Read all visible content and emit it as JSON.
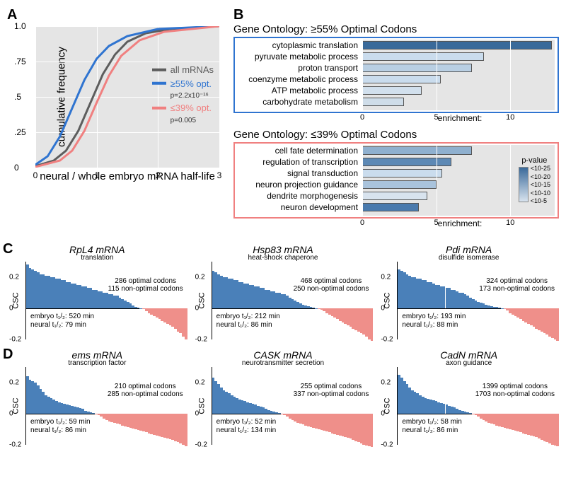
{
  "panelA": {
    "label": "A",
    "ylabel": "cumulative frequency",
    "xlabel": "neural / whole embryo mRNA half-life",
    "xlim": [
      0,
      3
    ],
    "ylim": [
      0,
      1
    ],
    "xticks": [
      0,
      1,
      2,
      3
    ],
    "yticks": [
      0,
      0.25,
      0.5,
      0.75,
      1.0
    ],
    "ytick_labels": [
      "0",
      ".25",
      ".5",
      ".75",
      "1.0"
    ],
    "bg": "#e5e5e5",
    "grid_color": "#ffffff",
    "line_width": 3,
    "series": [
      {
        "name": "all mRNAs",
        "color": "#5d5d5d",
        "p": null,
        "pts": [
          [
            0,
            0.01
          ],
          [
            0.3,
            0.05
          ],
          [
            0.5,
            0.12
          ],
          [
            0.7,
            0.26
          ],
          [
            0.9,
            0.46
          ],
          [
            1.1,
            0.66
          ],
          [
            1.3,
            0.8
          ],
          [
            1.5,
            0.89
          ],
          [
            1.8,
            0.95
          ],
          [
            2.2,
            0.98
          ],
          [
            3,
            1
          ]
        ]
      },
      {
        "name": "≥55% opt.",
        "color": "#2f74d0",
        "p": "p=2.2x10⁻¹⁶",
        "pts": [
          [
            0,
            0.02
          ],
          [
            0.2,
            0.08
          ],
          [
            0.4,
            0.22
          ],
          [
            0.6,
            0.42
          ],
          [
            0.8,
            0.62
          ],
          [
            1.0,
            0.77
          ],
          [
            1.2,
            0.86
          ],
          [
            1.5,
            0.93
          ],
          [
            2.0,
            0.98
          ],
          [
            3,
            1
          ]
        ]
      },
      {
        "name": "≤39% opt.",
        "color": "#f08080",
        "p": "p=0.005",
        "pts": [
          [
            0,
            0.005
          ],
          [
            0.4,
            0.05
          ],
          [
            0.6,
            0.12
          ],
          [
            0.8,
            0.26
          ],
          [
            1.0,
            0.46
          ],
          [
            1.2,
            0.65
          ],
          [
            1.4,
            0.79
          ],
          [
            1.7,
            0.9
          ],
          [
            2.1,
            0.96
          ],
          [
            3,
            1
          ]
        ]
      }
    ]
  },
  "panelB": {
    "label": "B",
    "title_hi": "Gene Ontology: ≥55% Optimal Codons",
    "title_lo": "Gene Ontology: ≤39% Optimal Codons",
    "border_hi": "#2f74d0",
    "border_lo": "#f08080",
    "xlabel": "enrichment:",
    "xmax": 13,
    "xticks": [
      0,
      5,
      10
    ],
    "pval_label": "p-value",
    "pval_scale_top": "<10-25",
    "pval_scale_bot": "<10-5",
    "pval_mids": [
      "<10-20",
      "<10-15",
      "<10-10"
    ],
    "grad_top": "#3a6a9a",
    "grad_bot": "#d8e3ee",
    "hi": [
      {
        "term": "cytoplasmic translation",
        "val": 12.8,
        "col": "#3a6a9a"
      },
      {
        "term": "pyruvate metabolic process",
        "val": 8.2,
        "col": "#cadced"
      },
      {
        "term": "proton transport",
        "val": 7.4,
        "col": "#b9cfe3"
      },
      {
        "term": "coenzyme metabolic process",
        "val": 5.3,
        "col": "#cadced"
      },
      {
        "term": "ATP metabolic process",
        "val": 4.0,
        "col": "#d2e0ed"
      },
      {
        "term": "carbohydrate metabolism",
        "val": 2.8,
        "col": "#cfdde9"
      }
    ],
    "lo": [
      {
        "term": "cell fate determination",
        "val": 7.4,
        "col": "#8fb0cf"
      },
      {
        "term": "regulation of transcription",
        "val": 6.0,
        "col": "#5d89b5"
      },
      {
        "term": "signal transduction",
        "val": 5.4,
        "col": "#cadced"
      },
      {
        "term": "neuron projection guidance",
        "val": 5.0,
        "col": "#a9c3dc"
      },
      {
        "term": "dendrite morphogenesis",
        "val": 4.4,
        "col": "#d8e3ee"
      },
      {
        "term": "neuron development",
        "val": 3.8,
        "col": "#4a7aad"
      }
    ]
  },
  "csc": {
    "ylabel": "CSC",
    "ylim": [
      -0.2,
      0.3
    ],
    "yticks": [
      -0.2,
      0,
      0.2
    ],
    "ytick_labels": [
      "-0.2",
      "0",
      "0.2"
    ],
    "pos_color": "#4a80b9",
    "neg_color": "#ef8f8a",
    "n_codons": 61,
    "rows": [
      {
        "label": "C",
        "items": [
          {
            "title": "RpL4 mRNA",
            "sub": "translation",
            "opt": "286 optimal codons",
            "nopt": "115 non-optimal codons",
            "hl1": "embryo t₁/₂: 520 min",
            "hl2": "neural t₁/₂: 79 min",
            "zero_at": 44,
            "bars": [
              0.28,
              0.26,
              0.25,
              0.24,
              0.23,
              0.22,
              0.22,
              0.21,
              0.21,
              0.2,
              0.2,
              0.19,
              0.19,
              0.18,
              0.18,
              0.17,
              0.17,
              0.16,
              0.16,
              0.15,
              0.15,
              0.14,
              0.14,
              0.13,
              0.13,
              0.12,
              0.12,
              0.11,
              0.11,
              0.1,
              0.1,
              0.09,
              0.09,
              0.08,
              0.08,
              0.07,
              0.06,
              0.05,
              0.04,
              0.03,
              0.02,
              0.01,
              0.005,
              0.002,
              -0.005,
              -0.02,
              -0.03,
              -0.04,
              -0.05,
              -0.06,
              -0.07,
              -0.08,
              -0.09,
              -0.1,
              -0.11,
              -0.12,
              -0.13,
              -0.15,
              -0.16,
              -0.18,
              -0.2
            ]
          },
          {
            "title": "Hsp83 mRNA",
            "sub": "heat-shock chaperone",
            "opt": "468 optimal codons",
            "nopt": "250 non-optimal codons",
            "hl1": "embryo t₁/₂: 212 min",
            "hl2": "neural t₁/₂: 86 min",
            "zero_at": 40,
            "bars": [
              0.24,
              0.23,
              0.22,
              0.21,
              0.2,
              0.2,
              0.19,
              0.19,
              0.18,
              0.18,
              0.17,
              0.17,
              0.16,
              0.16,
              0.15,
              0.15,
              0.14,
              0.14,
              0.13,
              0.13,
              0.12,
              0.12,
              0.11,
              0.11,
              0.1,
              0.1,
              0.09,
              0.09,
              0.08,
              0.07,
              0.06,
              0.05,
              0.04,
              0.03,
              0.025,
              0.02,
              0.015,
              0.01,
              0.005,
              0.002,
              -0.005,
              -0.01,
              -0.02,
              -0.03,
              -0.04,
              -0.05,
              -0.06,
              -0.07,
              -0.08,
              -0.09,
              -0.1,
              -0.11,
              -0.12,
              -0.13,
              -0.14,
              -0.15,
              -0.16,
              -0.17,
              -0.18,
              -0.2,
              -0.21
            ]
          },
          {
            "title": "Pdi mRNA",
            "sub": "disulfide isomerase",
            "opt": "324 optimal codons",
            "nopt": "173 non-optimal codons",
            "hl1": "embryo t₁/₂: 193 min",
            "hl2": "neural t₁/₂: 88 min",
            "zero_at": 40,
            "bars": [
              0.25,
              0.24,
              0.23,
              0.22,
              0.21,
              0.2,
              0.2,
              0.19,
              0.19,
              0.18,
              0.18,
              0.17,
              0.17,
              0.16,
              0.15,
              0.15,
              0.14,
              0.14,
              0.13,
              0.13,
              0.12,
              0.12,
              0.11,
              0.1,
              0.1,
              0.09,
              0.08,
              0.07,
              0.06,
              0.05,
              0.04,
              0.035,
              0.03,
              0.025,
              0.02,
              0.015,
              0.01,
              0.008,
              0.005,
              0.002,
              -0.005,
              -0.015,
              -0.03,
              -0.04,
              -0.05,
              -0.06,
              -0.07,
              -0.08,
              -0.09,
              -0.1,
              -0.11,
              -0.12,
              -0.13,
              -0.14,
              -0.15,
              -0.16,
              -0.17,
              -0.18,
              -0.19,
              -0.2,
              -0.21
            ]
          }
        ]
      },
      {
        "label": "D",
        "items": [
          {
            "title": "ems mRNA",
            "sub": "transcription factor",
            "opt": "210 optimal codons",
            "nopt": "285 non-optimal codons",
            "hl1": "embryo t₁/₂: 59 min",
            "hl2": "neural t₁/₂: 86 min",
            "zero_at": 26,
            "bars": [
              0.24,
              0.22,
              0.21,
              0.2,
              0.18,
              0.16,
              0.14,
              0.12,
              0.11,
              0.1,
              0.09,
              0.08,
              0.075,
              0.07,
              0.065,
              0.06,
              0.055,
              0.05,
              0.045,
              0.04,
              0.035,
              0.03,
              0.02,
              0.015,
              0.01,
              0.005,
              -0.005,
              -0.01,
              -0.02,
              -0.03,
              -0.04,
              -0.05,
              -0.055,
              -0.06,
              -0.065,
              -0.07,
              -0.075,
              -0.08,
              -0.085,
              -0.09,
              -0.095,
              -0.1,
              -0.105,
              -0.11,
              -0.115,
              -0.12,
              -0.125,
              -0.13,
              -0.135,
              -0.14,
              -0.145,
              -0.15,
              -0.155,
              -0.16,
              -0.165,
              -0.17,
              -0.175,
              -0.18,
              -0.19,
              -0.2,
              -0.21
            ]
          },
          {
            "title": "CASK mRNA",
            "sub": "neurotransmitter secretion",
            "opt": "255 optimal codons",
            "nopt": "337 non-optimal codons",
            "hl1": "embryo t₁/₂: 52 min",
            "hl2": "neural t₁/₂: 134 min",
            "zero_at": 26,
            "bars": [
              0.23,
              0.21,
              0.19,
              0.17,
              0.15,
              0.14,
              0.13,
              0.12,
              0.11,
              0.1,
              0.09,
              0.085,
              0.08,
              0.075,
              0.07,
              0.065,
              0.06,
              0.05,
              0.045,
              0.04,
              0.03,
              0.025,
              0.02,
              0.015,
              0.01,
              0.005,
              -0.005,
              -0.01,
              -0.02,
              -0.03,
              -0.04,
              -0.05,
              -0.06,
              -0.065,
              -0.07,
              -0.075,
              -0.08,
              -0.085,
              -0.09,
              -0.095,
              -0.1,
              -0.105,
              -0.11,
              -0.115,
              -0.12,
              -0.125,
              -0.13,
              -0.135,
              -0.14,
              -0.145,
              -0.15,
              -0.155,
              -0.16,
              -0.17,
              -0.175,
              -0.18,
              -0.19,
              -0.2,
              -0.205,
              -0.21,
              -0.215
            ]
          },
          {
            "title": "CadN mRNA",
            "sub": "axon guidance",
            "opt": "1399 optimal codons",
            "nopt": "1703 non-optimal codons",
            "hl1": "embryo t₁/₂: 58 min",
            "hl2": "neural t₁/₂: 86 min",
            "zero_at": 28,
            "bars": [
              0.25,
              0.23,
              0.21,
              0.19,
              0.17,
              0.15,
              0.14,
              0.13,
              0.12,
              0.11,
              0.1,
              0.095,
              0.09,
              0.085,
              0.08,
              0.075,
              0.07,
              0.065,
              0.06,
              0.05,
              0.045,
              0.04,
              0.03,
              0.025,
              0.02,
              0.015,
              0.01,
              0.005,
              -0.005,
              -0.01,
              -0.02,
              -0.03,
              -0.04,
              -0.05,
              -0.06,
              -0.065,
              -0.07,
              -0.075,
              -0.08,
              -0.085,
              -0.09,
              -0.095,
              -0.1,
              -0.105,
              -0.11,
              -0.115,
              -0.12,
              -0.125,
              -0.13,
              -0.135,
              -0.14,
              -0.145,
              -0.15,
              -0.16,
              -0.17,
              -0.175,
              -0.18,
              -0.19,
              -0.2,
              -0.205,
              -0.21
            ]
          }
        ]
      }
    ]
  }
}
